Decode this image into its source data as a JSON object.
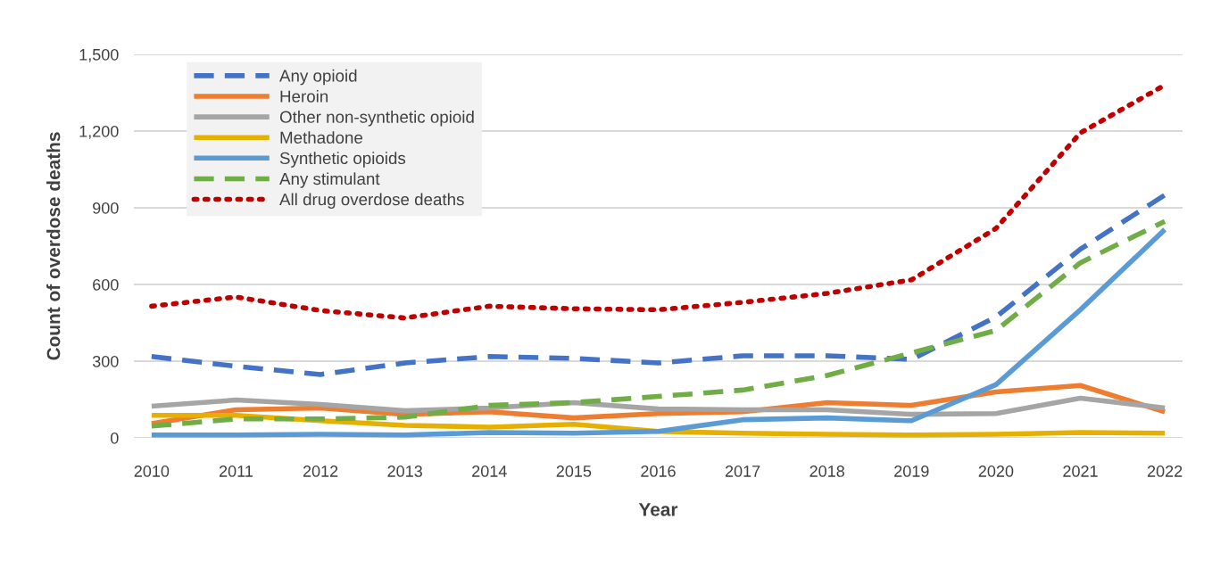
{
  "chart_data": {
    "type": "line",
    "xlabel": "Year",
    "ylabel": "Count of overdose deaths",
    "categories": [
      "2010",
      "2011",
      "2012",
      "2013",
      "2014",
      "2015",
      "2016",
      "2017",
      "2018",
      "2019",
      "2020",
      "2021",
      "2022"
    ],
    "series": [
      {
        "name": "Any opioid",
        "color": "#4472c4",
        "line_style": "dashed",
        "values": [
          318,
          280,
          248,
          293,
          318,
          311,
          293,
          321,
          321,
          307,
          473,
          738,
          950
        ]
      },
      {
        "name": "Heroin",
        "color": "#ed7d31",
        "line_style": "solid",
        "values": [
          56,
          110,
          117,
          92,
          102,
          78,
          95,
          102,
          138,
          127,
          180,
          205,
          102
        ]
      },
      {
        "name": "Other non-synthetic opioid",
        "color": "#a5a5a5",
        "line_style": "solid",
        "values": [
          124,
          148,
          131,
          106,
          117,
          138,
          113,
          110,
          110,
          92,
          95,
          155,
          117
        ]
      },
      {
        "name": "Methadone",
        "color": "#e6b000",
        "line_style": "solid",
        "values": [
          88,
          88,
          67,
          49,
          42,
          53,
          25,
          18,
          14,
          11,
          14,
          21,
          18
        ]
      },
      {
        "name": "Synthetic opioids",
        "color": "#5b9bd5",
        "line_style": "solid",
        "values": [
          11,
          11,
          14,
          11,
          21,
          18,
          25,
          71,
          78,
          67,
          208,
          501,
          815
        ]
      },
      {
        "name": "Any stimulant",
        "color": "#70ad47",
        "line_style": "dashed",
        "values": [
          46,
          74,
          74,
          81,
          127,
          138,
          162,
          187,
          244,
          332,
          420,
          685,
          847
        ]
      },
      {
        "name": "All drug overdose deaths",
        "color": "#c00000",
        "line_style": "dotted",
        "values": [
          515,
          551,
          498,
          469,
          515,
          505,
          501,
          530,
          565,
          618,
          819,
          1193,
          1380
        ]
      }
    ],
    "ylim": [
      0,
      1500
    ],
    "yticks": [
      {
        "value": 0,
        "label": "0"
      },
      {
        "value": 300,
        "label": "300"
      },
      {
        "value": 600,
        "label": "600"
      },
      {
        "value": 900,
        "label": "900"
      },
      {
        "value": 1200,
        "label": "1,200"
      },
      {
        "value": 1500,
        "label": "1,500"
      }
    ],
    "grid": "y",
    "legend": "top left",
    "marker": "none"
  }
}
